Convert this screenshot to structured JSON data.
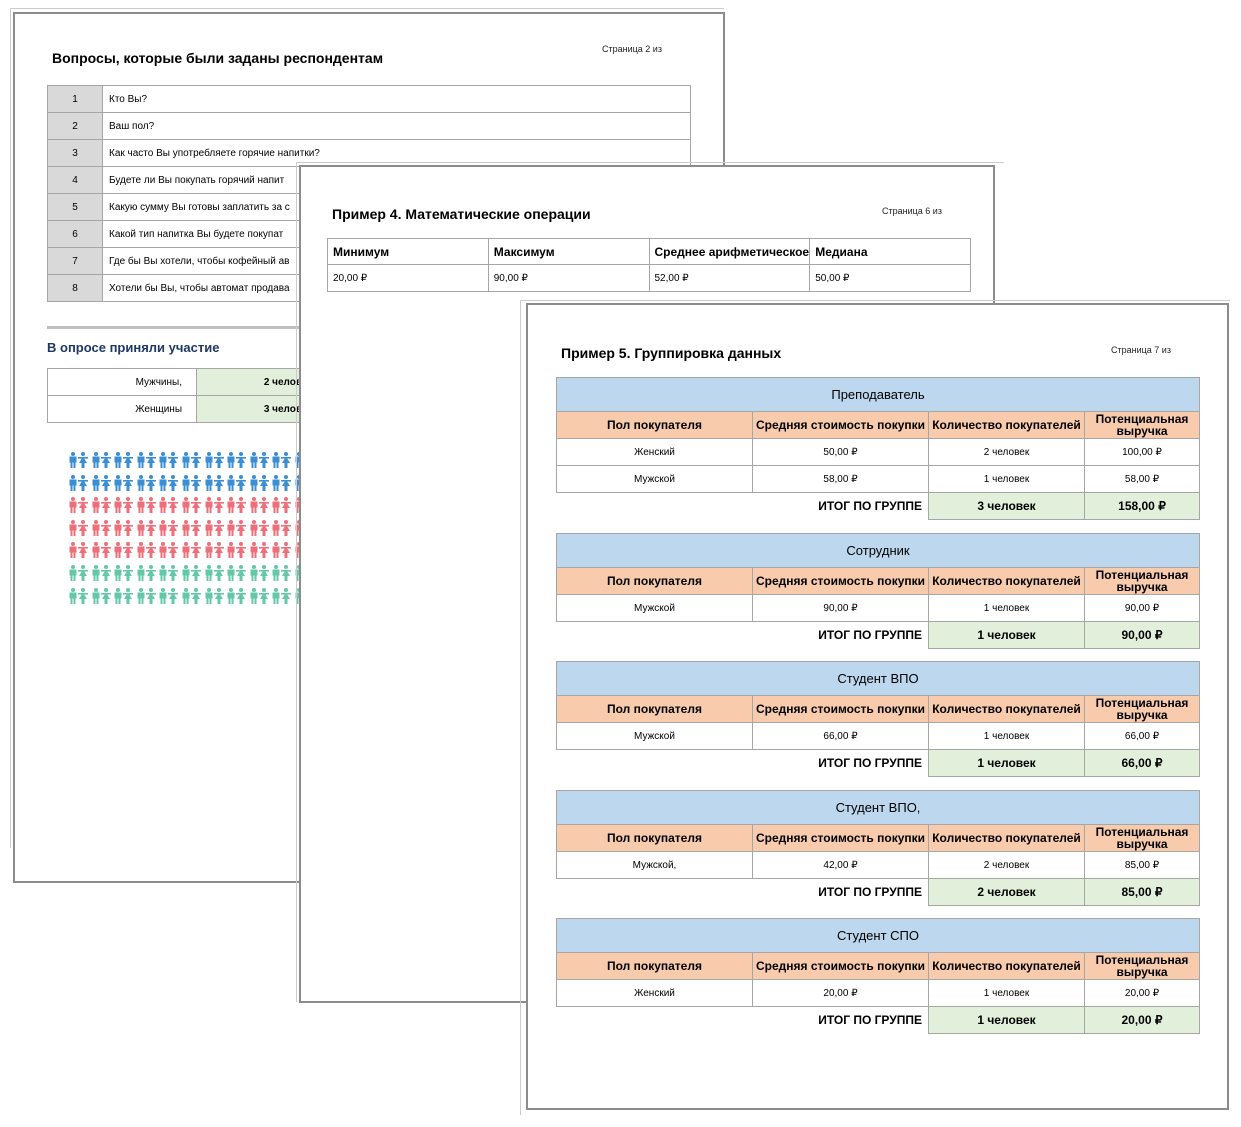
{
  "page1": {
    "title": "Вопросы, которые были заданы респондентам",
    "page_label": "Страница 2 из",
    "questions": [
      {
        "n": "1",
        "q": "Кто Вы?"
      },
      {
        "n": "2",
        "q": "Ваш пол?"
      },
      {
        "n": "3",
        "q": "Как часто Вы употребляете горячие напитки?"
      },
      {
        "n": "4",
        "q": "Будете ли Вы покупать горячий напит"
      },
      {
        "n": "5",
        "q": "Какую сумму Вы готовы заплатить за с"
      },
      {
        "n": "6",
        "q": "Какой тип напитка Вы будете покупат"
      },
      {
        "n": "7",
        "q": "Где бы Вы хотели, чтобы кофейный ав"
      },
      {
        "n": "8",
        "q": "Хотели бы Вы, чтобы автомат продава"
      }
    ],
    "section_title": "В опросе приняли участие",
    "participants": [
      {
        "label": "Мужчины,",
        "value": "2 челов"
      },
      {
        "label": "Женщины",
        "value": "3 челов"
      }
    ],
    "figure_rows": [
      "#3a8fd4",
      "#3a8fd4",
      "#ee6f7a",
      "#ee6f7a",
      "#ee6f7a",
      "#63c8a8",
      "#63c8a8"
    ]
  },
  "page2": {
    "title": "Пример 4. Математические операции",
    "page_label": "Страница 6 из",
    "headers": [
      "Минимум",
      "Максимум",
      "Среднее арифметическое",
      "Медиана"
    ],
    "values": [
      "20,00 ₽",
      "90,00 ₽",
      "52,00 ₽",
      "50,00 ₽"
    ]
  },
  "page3": {
    "title": "Пример 5. Группировка данных",
    "page_label": "Страница 7 из",
    "col_headers": [
      "Пол покупателя",
      "Средняя стоимость покупки",
      "Количество покупателей",
      "Потенциальная выручка"
    ],
    "total_label": "ИТОГ ПО ГРУППЕ",
    "groups": [
      {
        "name": "Преподаватель",
        "rows": [
          [
            "Женский",
            "50,00 ₽",
            "2 человек",
            "100,00 ₽"
          ],
          [
            "Мужской",
            "58,00 ₽",
            "1 человек",
            "58,00 ₽"
          ]
        ],
        "total_count": "3 человек",
        "total_sum": "158,00 ₽"
      },
      {
        "name": "Сотрудник",
        "rows": [
          [
            "Мужской",
            "90,00 ₽",
            "1 человек",
            "90,00 ₽"
          ]
        ],
        "total_count": "1 человек",
        "total_sum": "90,00 ₽"
      },
      {
        "name": "Студент ВПО",
        "rows": [
          [
            "Мужской",
            "66,00 ₽",
            "1 человек",
            "66,00 ₽"
          ]
        ],
        "total_count": "1 человек",
        "total_sum": "66,00 ₽"
      },
      {
        "name": "Студент ВПО,",
        "rows": [
          [
            "Мужской,",
            "42,00 ₽",
            "2 человек",
            "85,00 ₽"
          ]
        ],
        "total_count": "2 человек",
        "total_sum": "85,00 ₽"
      },
      {
        "name": "Студент СПО",
        "rows": [
          [
            "Женский",
            "20,00 ₽",
            "1 человек",
            "20,00 ₽"
          ]
        ],
        "total_count": "1 человек",
        "total_sum": "20,00 ₽"
      }
    ]
  }
}
